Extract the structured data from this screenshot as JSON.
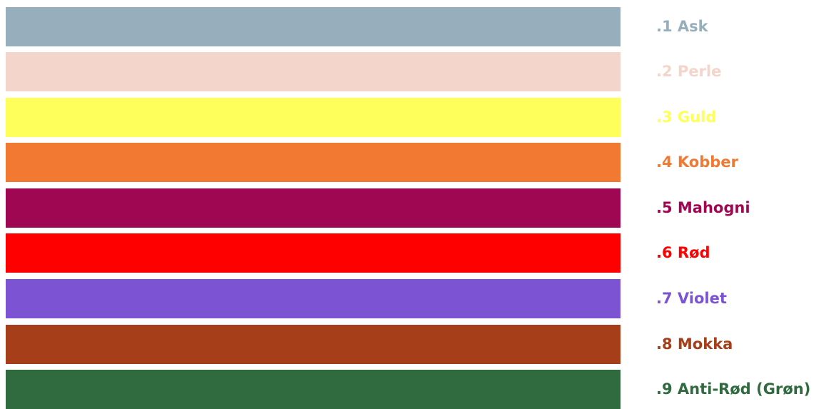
{
  "swatches": [
    {
      "label": ".1 Ask",
      "color": "#97aebd"
    },
    {
      "label": ".2 Perle",
      "color": "#f3d5cb"
    },
    {
      "label": ".3 Guld",
      "color": "#ffff5c"
    },
    {
      "label": ".4 Kobber",
      "color": "#f17932"
    },
    {
      "label": ".5 Mahogni",
      "color": "#a00752"
    },
    {
      "label": ".6 Rød",
      "color": "#ff0000"
    },
    {
      "label": ".7 Violet",
      "color": "#7b53d3"
    },
    {
      "label": ".8 Mokka",
      "color": "#a73e1a"
    },
    {
      "label": ".9 Anti-Rød (Grøn)",
      "color": "#306a3f"
    }
  ]
}
